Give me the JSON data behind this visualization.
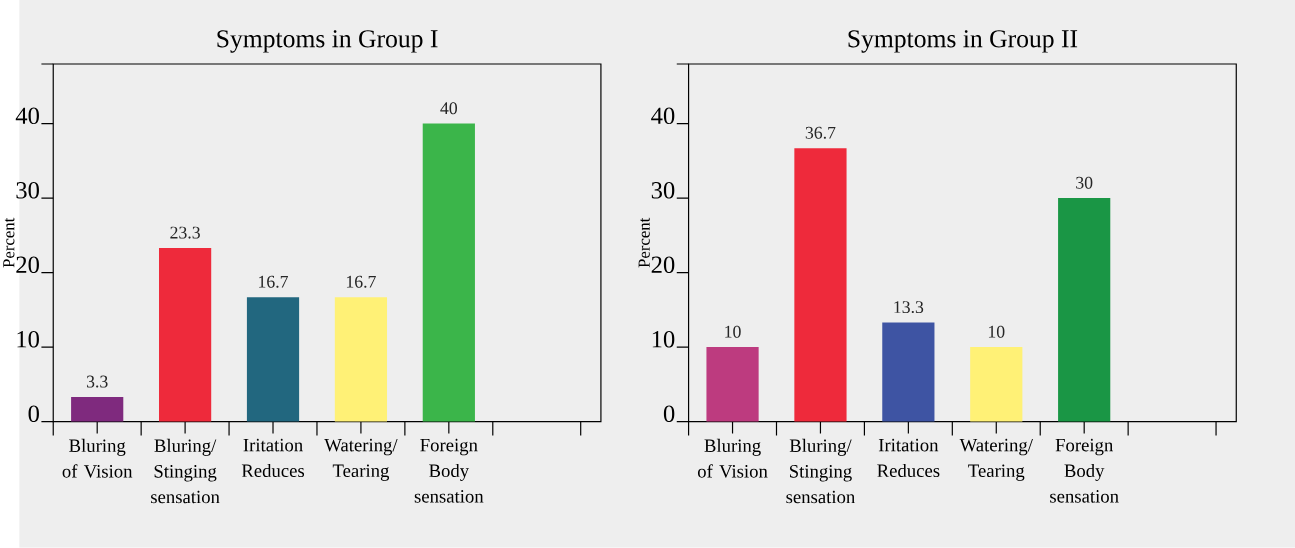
{
  "chart_data": [
    {
      "type": "bar",
      "title": "Symptoms in Group I",
      "ylabel": "Percent",
      "categories": [
        "Bluring of Vision",
        "Bluring/ Stinging sensation",
        "Iritation Reduces",
        "Watering/ Tearing",
        "Foreign Body sensation"
      ],
      "values": [
        3.3,
        23.3,
        16.7,
        16.7,
        40
      ],
      "colors": [
        "#7f2a7e",
        "#ee2a3b",
        "#22677f",
        "#fff176",
        "#3bb54a"
      ],
      "ylim": [
        0,
        48
      ],
      "yticks": [
        0,
        10,
        20,
        30,
        40,
        {
          "value": 48,
          "label": null
        }
      ],
      "data_labels": true
    },
    {
      "type": "bar",
      "title": "Symptoms in Group II",
      "ylabel": "Percent",
      "categories": [
        "Bluring of Vision",
        "Bluring/ Stinging sensation",
        "Iritation Reduces",
        "Watering/ Tearing",
        "Foreign Body sensation"
      ],
      "values": [
        10,
        36.7,
        13.3,
        10,
        30
      ],
      "colors": [
        "#bd3b7f",
        "#ee2a3b",
        "#3e54a3",
        "#fff176",
        "#1a9645"
      ],
      "ylim": [
        0,
        48
      ],
      "yticks": [
        0,
        10,
        20,
        30,
        40,
        {
          "value": 48,
          "label": null
        }
      ],
      "data_labels": true
    }
  ]
}
